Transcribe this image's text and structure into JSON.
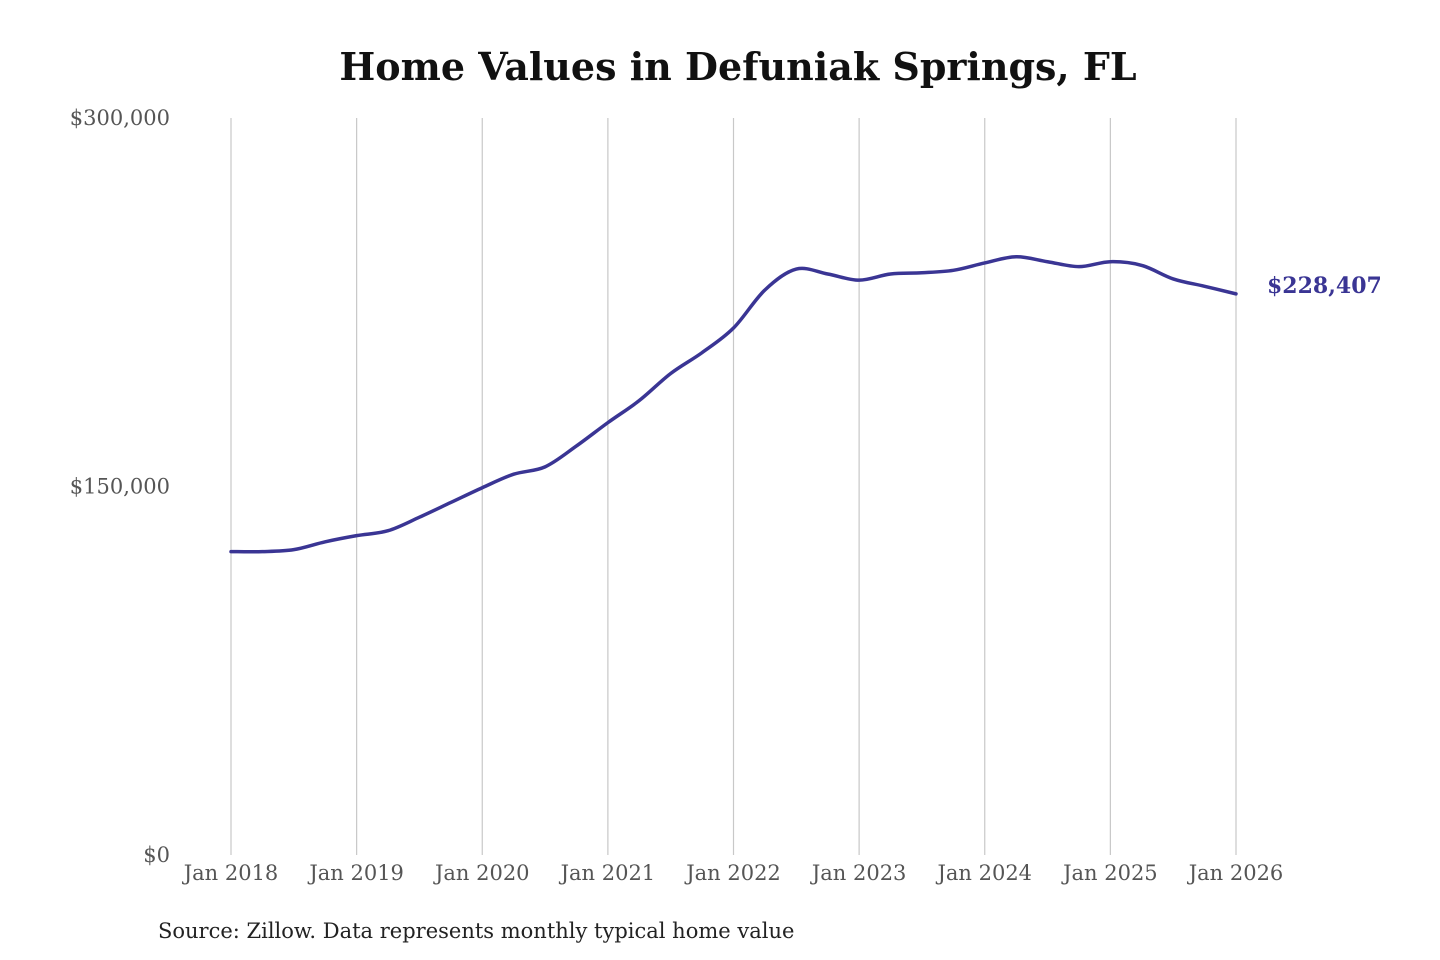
{
  "chart_data": {
    "type": "line",
    "title": "Home Values in Defuniak Springs, FL",
    "xlabel": "",
    "ylabel": "",
    "source": "Source: Zillow. Data represents monthly typical home value",
    "x_ticks": [
      "Jan 2018",
      "Jan 2019",
      "Jan 2020",
      "Jan 2021",
      "Jan 2022",
      "Jan 2023",
      "Jan 2024",
      "Jan 2025",
      "Jan 2026"
    ],
    "y_ticks": [
      {
        "value": 0,
        "label": "$0"
      },
      {
        "value": 150000,
        "label": "$150,000"
      },
      {
        "value": 300000,
        "label": "$300,000"
      }
    ],
    "ylim": [
      0,
      300000
    ],
    "xlim": [
      "2018-01",
      "2026-01"
    ],
    "grid": "vertical",
    "line_color": "#3a3594",
    "end_label": "$228,407",
    "series": [
      {
        "points": [
          [
            "2018-01",
            123500
          ],
          [
            "2018-04",
            123500
          ],
          [
            "2018-07",
            124300
          ],
          [
            "2018-10",
            127500
          ],
          [
            "2019-01",
            130000
          ],
          [
            "2019-04",
            132000
          ],
          [
            "2019-07",
            137500
          ],
          [
            "2019-10",
            143500
          ],
          [
            "2020-01",
            149500
          ],
          [
            "2020-04",
            155000
          ],
          [
            "2020-07",
            158000
          ],
          [
            "2020-10",
            166500
          ],
          [
            "2021-01",
            176000
          ],
          [
            "2021-04",
            185000
          ],
          [
            "2021-07",
            196000
          ],
          [
            "2021-10",
            204500
          ],
          [
            "2022-01",
            214500
          ],
          [
            "2022-04",
            230000
          ],
          [
            "2022-07",
            238500
          ],
          [
            "2022-10",
            236500
          ],
          [
            "2023-01",
            234000
          ],
          [
            "2023-04",
            236500
          ],
          [
            "2023-07",
            237000
          ],
          [
            "2023-10",
            238000
          ],
          [
            "2024-01",
            241000
          ],
          [
            "2024-04",
            243500
          ],
          [
            "2024-07",
            241500
          ],
          [
            "2024-10",
            239500
          ],
          [
            "2025-01",
            241500
          ],
          [
            "2025-04",
            240000
          ],
          [
            "2025-07",
            234500
          ],
          [
            "2025-10",
            231500
          ],
          [
            "2026-01",
            228407
          ]
        ]
      }
    ]
  }
}
